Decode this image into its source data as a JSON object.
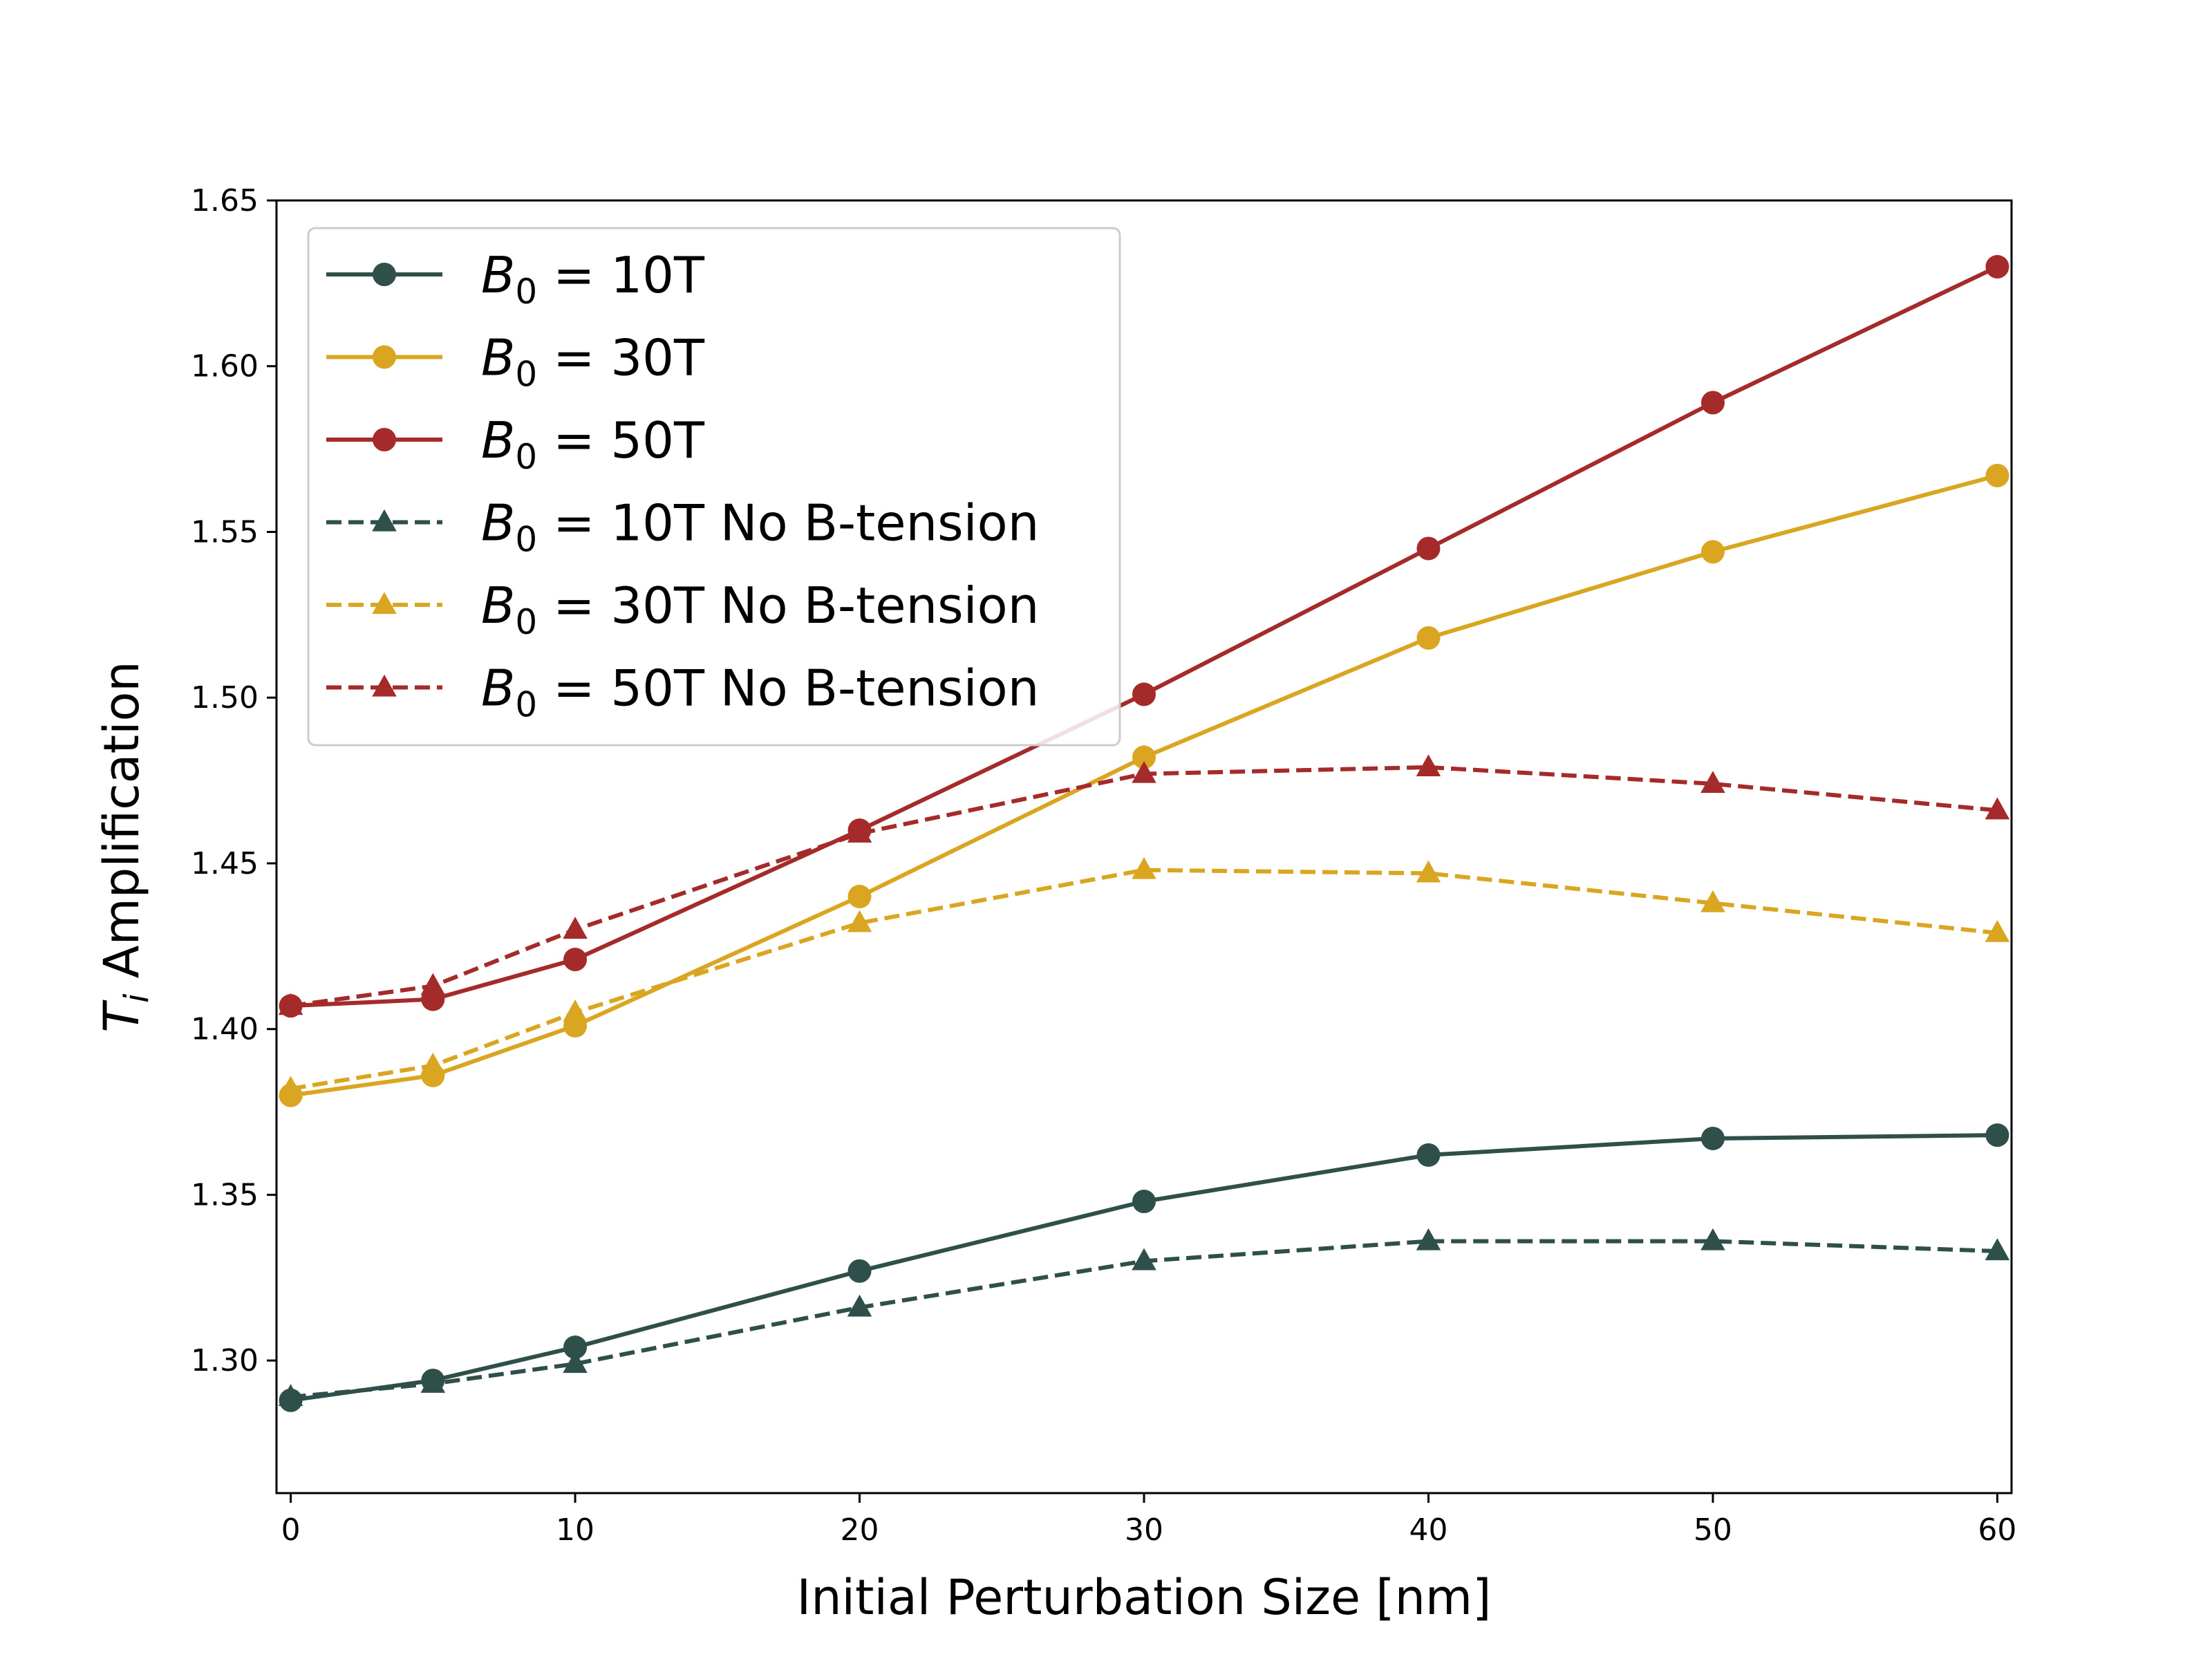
{
  "chart_data": {
    "type": "line",
    "title": "",
    "xlabel": "Initial Perturbation Size [nm]",
    "ylabel": {
      "symbol": "T",
      "subscript": "i",
      "text": " Amplification"
    },
    "x": [
      0,
      5,
      10,
      20,
      30,
      40,
      50,
      60
    ],
    "xlim": [
      -0.5,
      60.5
    ],
    "ylim": [
      1.26,
      1.65
    ],
    "xticks": [
      0,
      10,
      20,
      30,
      40,
      50,
      60
    ],
    "yticks": [
      "1.30",
      "1.35",
      "1.40",
      "1.45",
      "1.50",
      "1.55",
      "1.60",
      "1.65"
    ],
    "grid": false,
    "legend_position": "top-left",
    "series": [
      {
        "name": "B0 = 10T",
        "label_symbol": "B",
        "label_sub": "0",
        "label_rest": " = 10T",
        "color": "#2f4f4a",
        "marker": "circle",
        "linestyle": "solid",
        "values": [
          1.288,
          1.294,
          1.304,
          1.327,
          1.348,
          1.362,
          1.367,
          1.368
        ]
      },
      {
        "name": "B0 = 30T",
        "label_symbol": "B",
        "label_sub": "0",
        "label_rest": " = 30T",
        "color": "#daa520",
        "marker": "circle",
        "linestyle": "solid",
        "values": [
          1.38,
          1.386,
          1.401,
          1.44,
          1.482,
          1.518,
          1.544,
          1.567
        ]
      },
      {
        "name": "B0 = 50T",
        "label_symbol": "B",
        "label_sub": "0",
        "label_rest": " = 50T",
        "color": "#a52a2a",
        "marker": "circle",
        "linestyle": "solid",
        "values": [
          1.407,
          1.409,
          1.421,
          1.46,
          1.501,
          1.545,
          1.589,
          1.63
        ]
      },
      {
        "name": "B0 = 10T No B-tension",
        "label_symbol": "B",
        "label_sub": "0",
        "label_rest": " = 10T No B-tension",
        "color": "#2f4f4a",
        "marker": "triangle",
        "linestyle": "dashed",
        "values": [
          1.289,
          1.293,
          1.299,
          1.316,
          1.33,
          1.336,
          1.336,
          1.333
        ]
      },
      {
        "name": "B0 = 30T No B-tension",
        "label_symbol": "B",
        "label_sub": "0",
        "label_rest": " = 30T No B-tension",
        "color": "#daa520",
        "marker": "triangle",
        "linestyle": "dashed",
        "values": [
          1.382,
          1.389,
          1.405,
          1.432,
          1.448,
          1.447,
          1.438,
          1.429
        ]
      },
      {
        "name": "B0 = 50T No B-tension",
        "label_symbol": "B",
        "label_sub": "0",
        "label_rest": " = 50T No B-tension",
        "color": "#a52a2a",
        "marker": "triangle",
        "linestyle": "dashed",
        "values": [
          1.407,
          1.413,
          1.43,
          1.459,
          1.477,
          1.479,
          1.474,
          1.466
        ]
      }
    ]
  }
}
